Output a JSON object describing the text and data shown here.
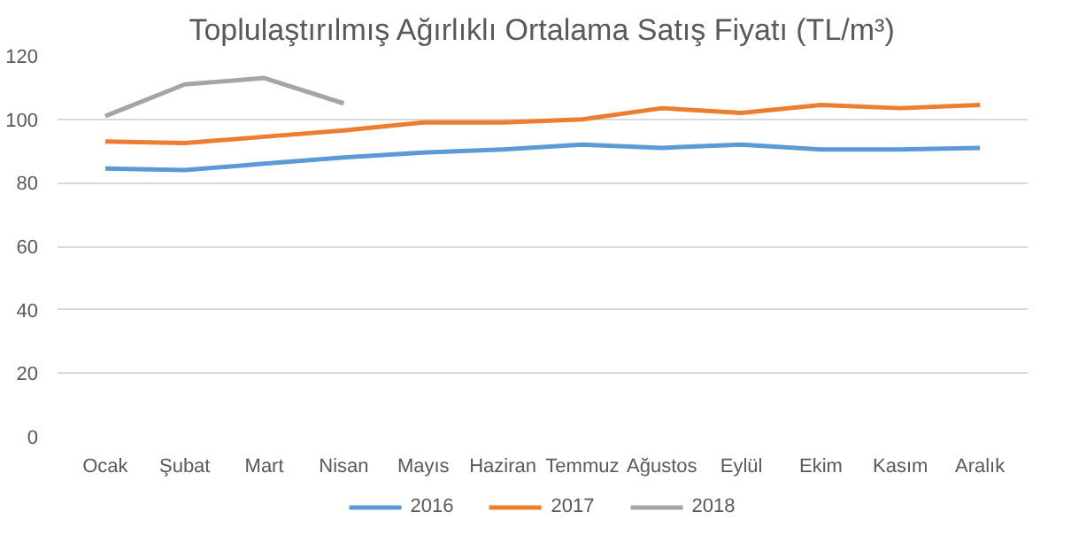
{
  "chart_data": {
    "type": "line",
    "title": "Toplulaştırılmış Ağırlıklı Ortalama Satış Fiyatı (TL/m³)",
    "categories": [
      "Ocak",
      "Şubat",
      "Mart",
      "Nisan",
      "Mayıs",
      "Haziran",
      "Temmuz",
      "Ağustos",
      "Eylül",
      "Ekim",
      "Kasım",
      "Aralık"
    ],
    "series": [
      {
        "name": "2016",
        "color": "#5b9bd5",
        "values": [
          84.5,
          84,
          86,
          88,
          89.5,
          90.5,
          92,
          91,
          92,
          90.5,
          90.5,
          91
        ]
      },
      {
        "name": "2017",
        "color": "#ed7d31",
        "values": [
          93,
          92.5,
          94.5,
          96.5,
          99,
          99,
          100,
          103.5,
          102,
          104.5,
          103.5,
          104.5
        ]
      },
      {
        "name": "2018",
        "color": "#a5a5a5",
        "values": [
          101,
          111,
          113,
          105,
          null,
          null,
          null,
          null,
          null,
          null,
          null,
          null
        ]
      }
    ],
    "ylim": [
      0,
      120
    ],
    "yticks": [
      0,
      20,
      40,
      60,
      80,
      100,
      120
    ],
    "grid": "y",
    "legend": "bottom",
    "marker": "none",
    "line_style": "solid"
  }
}
